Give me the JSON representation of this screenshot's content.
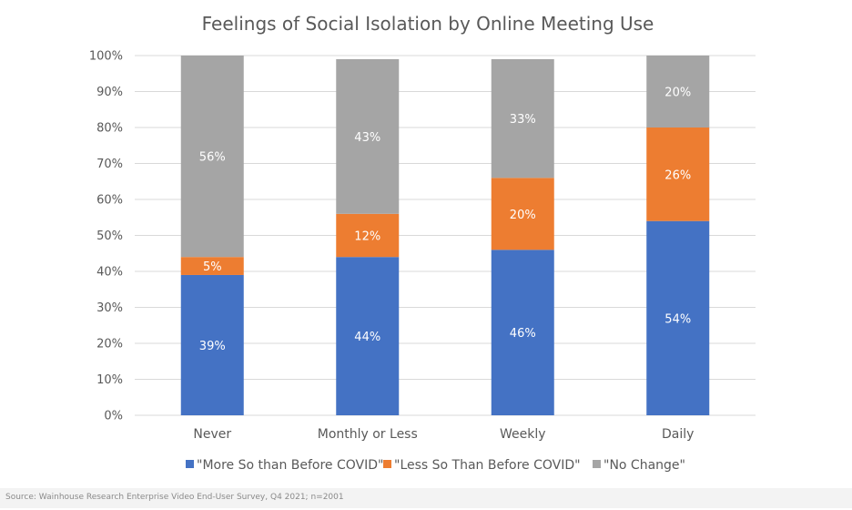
{
  "chart_data": {
    "type": "bar",
    "stacked": true,
    "title": "Feelings of Social Isolation by Online Meeting Use",
    "categories": [
      "Never",
      "Monthly or Less",
      "Weekly",
      "Daily"
    ],
    "series": [
      {
        "name": "\"More So than Before COVID\"",
        "color": "#4472C4",
        "values": [
          39,
          44,
          46,
          54
        ],
        "labels": [
          "39%",
          "44%",
          "46%",
          "54%"
        ]
      },
      {
        "name": "\"Less So Than Before COVID\"",
        "color": "#ED7D31",
        "values": [
          5,
          12,
          20,
          26
        ],
        "labels": [
          "5%",
          "12%",
          "20%",
          "26%"
        ]
      },
      {
        "name": "\"No Change\"",
        "color": "#A5A5A5",
        "values": [
          56,
          43,
          33,
          20
        ],
        "labels": [
          "56%",
          "43%",
          "33%",
          "20%"
        ]
      }
    ],
    "yticks": [
      "0%",
      "10%",
      "20%",
      "30%",
      "40%",
      "50%",
      "60%",
      "70%",
      "80%",
      "90%",
      "100%"
    ],
    "ylim": [
      0,
      100
    ],
    "grid": true,
    "legend": "bottom",
    "gridColor": "#d9d9d9"
  },
  "footer": {
    "source": "Source: Wainhouse Research Enterprise Video End-User Survey, Q4 2021; n=2001"
  }
}
